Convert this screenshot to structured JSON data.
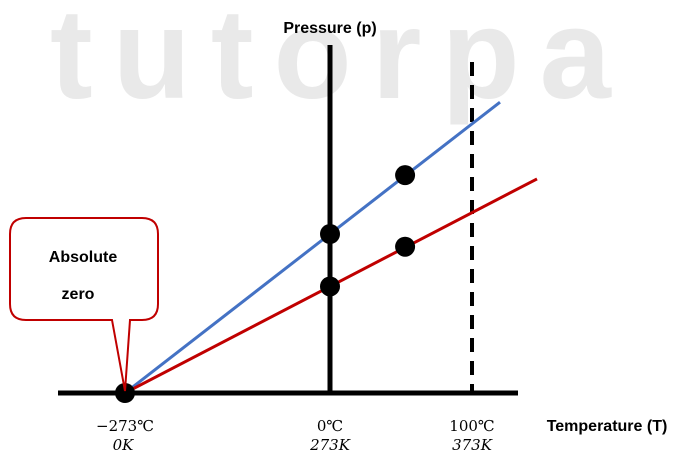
{
  "watermark": "tutorpa",
  "y_axis_label": "Pressure (p)",
  "x_axis_label": "Temperature (T)",
  "callout": {
    "line1": "Absolute",
    "line2": "zero"
  },
  "ticks": [
    {
      "celsius": "−273℃",
      "kelvin": "0K"
    },
    {
      "celsius": "0℃",
      "kelvin": "273K"
    },
    {
      "celsius": "100℃",
      "kelvin": "373K"
    }
  ],
  "colors": {
    "blue_line": "#4472C4",
    "red_line": "#C00000",
    "callout_border": "#C00000",
    "axis": "#000000",
    "watermark": "#E9E9E9"
  },
  "chart_data": {
    "type": "line",
    "x_unit": "K",
    "x": [
      0,
      273,
      373
    ],
    "series": [
      {
        "values": [
          0,
          1.0,
          1.37
        ]
      },
      {
        "values": [
          0,
          0.67,
          0.92
        ]
      }
    ],
    "xlabel": "Temperature (T)",
    "ylabel": "Pressure (p)"
  }
}
